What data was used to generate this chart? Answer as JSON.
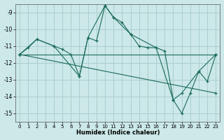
{
  "xlabel": "Humidex (Indice chaleur)",
  "xlim": [
    -0.5,
    23.5
  ],
  "ylim": [
    -15.5,
    -8.5
  ],
  "yticks": [
    -15,
    -14,
    -13,
    -12,
    -11,
    -10,
    -9
  ],
  "xticks": [
    0,
    1,
    2,
    3,
    4,
    5,
    6,
    7,
    8,
    9,
    10,
    11,
    12,
    13,
    14,
    15,
    16,
    17,
    18,
    19,
    20,
    21,
    22,
    23
  ],
  "bg_color": "#cce8e8",
  "grid_color": "#aacfcf",
  "line_color": "#1a6b5a",
  "lines": [
    {
      "x": [
        0,
        1,
        2,
        4,
        5,
        6,
        7,
        8,
        9,
        10,
        11,
        12,
        13,
        14,
        15,
        16,
        17,
        18,
        19,
        20,
        21,
        22,
        23
      ],
      "y": [
        -11.5,
        -11.1,
        -10.6,
        -11.0,
        -11.2,
        -11.5,
        -12.8,
        -10.5,
        -10.7,
        -8.6,
        -9.3,
        -9.6,
        -10.3,
        -11.0,
        -11.1,
        -11.1,
        -11.3,
        -14.2,
        -15.0,
        -13.8,
        -12.5,
        -13.1,
        -11.5
      ]
    },
    {
      "x": [
        0,
        2,
        4,
        7,
        8,
        10,
        11,
        13,
        16,
        18,
        19,
        21,
        23
      ],
      "y": [
        -11.5,
        -10.6,
        -11.0,
        -12.8,
        -10.5,
        -8.6,
        -9.3,
        -10.3,
        -11.1,
        -14.2,
        -13.8,
        -12.5,
        -11.5
      ]
    },
    {
      "x": [
        0,
        23
      ],
      "y": [
        -11.5,
        -11.5
      ]
    },
    {
      "x": [
        0,
        23
      ],
      "y": [
        -11.5,
        -13.8
      ]
    }
  ]
}
